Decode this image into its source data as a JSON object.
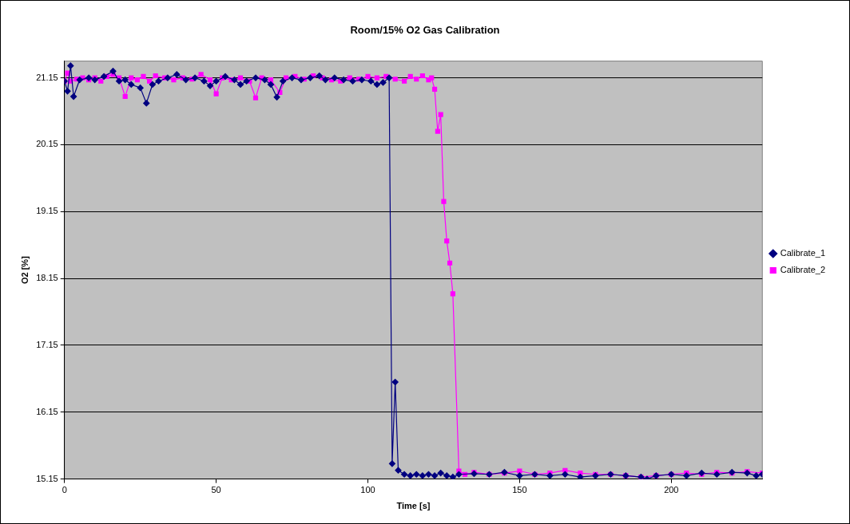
{
  "chart_data": {
    "type": "line",
    "title": "Room/15% O2 Gas Calibration",
    "xlabel": "Time [s]",
    "ylabel": "O2 [%]",
    "xlim": [
      0,
      230
    ],
    "xticks": [
      0,
      50,
      100,
      150,
      200
    ],
    "ylim": [
      15.15,
      21.4
    ],
    "yticks": [
      15.15,
      16.15,
      17.15,
      18.15,
      19.15,
      20.15,
      21.15
    ],
    "grid": "y",
    "legend": "right",
    "line_style": "solid",
    "series": [
      {
        "name": "Calibrate_1",
        "color": "#000080",
        "marker": "diamond",
        "x": [
          0,
          1,
          2,
          3,
          5,
          8,
          10,
          13,
          16,
          18,
          20,
          22,
          25,
          27,
          29,
          31,
          34,
          37,
          40,
          43,
          46,
          48,
          50,
          53,
          56,
          58,
          60,
          63,
          66,
          68,
          70,
          72,
          75,
          78,
          81,
          84,
          86,
          89,
          92,
          95,
          98,
          101,
          103,
          105,
          107,
          108,
          109,
          110,
          112,
          114,
          116,
          118,
          120,
          122,
          124,
          126,
          128,
          130,
          135,
          140,
          145,
          150,
          155,
          160,
          165,
          170,
          175,
          180,
          185,
          190,
          192,
          195,
          200,
          205,
          210,
          215,
          220,
          225,
          228,
          230
        ],
        "values": [
          21.1,
          20.95,
          21.33,
          20.87,
          21.12,
          21.15,
          21.12,
          21.17,
          21.25,
          21.1,
          21.12,
          21.05,
          21.0,
          20.77,
          21.05,
          21.1,
          21.15,
          21.2,
          21.12,
          21.15,
          21.1,
          21.03,
          21.1,
          21.17,
          21.12,
          21.05,
          21.1,
          21.15,
          21.12,
          21.05,
          20.86,
          21.1,
          21.15,
          21.12,
          21.15,
          21.18,
          21.12,
          21.15,
          21.12,
          21.1,
          21.12,
          21.1,
          21.05,
          21.08,
          21.15,
          15.38,
          16.6,
          15.28,
          15.22,
          15.2,
          15.22,
          15.2,
          15.22,
          15.2,
          15.24,
          15.2,
          15.18,
          15.22,
          15.23,
          15.22,
          15.25,
          15.2,
          15.22,
          15.2,
          15.22,
          15.18,
          15.2,
          15.22,
          15.2,
          15.18,
          15.15,
          15.2,
          15.22,
          15.2,
          15.24,
          15.22,
          15.25,
          15.24,
          15.2,
          15.22
        ]
      },
      {
        "name": "Calibrate_2",
        "color": "#ff00ff",
        "marker": "square",
        "x": [
          0,
          1,
          2,
          4,
          6,
          8,
          10,
          12,
          14,
          16,
          18,
          20,
          22,
          24,
          26,
          28,
          30,
          33,
          36,
          39,
          42,
          45,
          48,
          50,
          52,
          55,
          58,
          61,
          63,
          65,
          68,
          71,
          73,
          76,
          79,
          82,
          85,
          88,
          91,
          94,
          97,
          100,
          103,
          106,
          109,
          112,
          114,
          116,
          118,
          120,
          121,
          122,
          123,
          124,
          125,
          126,
          127,
          128,
          130,
          132,
          135,
          140,
          145,
          150,
          155,
          160,
          165,
          170,
          175,
          180,
          185,
          190,
          195,
          200,
          205,
          210,
          215,
          220,
          225,
          230
        ],
        "values": [
          21.1,
          21.22,
          21.1,
          21.13,
          21.15,
          21.12,
          21.15,
          21.1,
          21.17,
          21.2,
          21.15,
          20.87,
          21.15,
          21.12,
          21.17,
          21.1,
          21.18,
          21.15,
          21.12,
          21.15,
          21.13,
          21.2,
          21.12,
          20.91,
          21.15,
          21.12,
          21.15,
          21.1,
          20.85,
          21.15,
          21.12,
          20.93,
          21.15,
          21.17,
          21.13,
          21.18,
          21.15,
          21.12,
          21.1,
          21.15,
          21.13,
          21.17,
          21.15,
          21.17,
          21.13,
          21.1,
          21.17,
          21.13,
          21.18,
          21.12,
          21.15,
          20.98,
          20.35,
          20.6,
          19.3,
          18.71,
          18.38,
          17.92,
          15.27,
          15.22,
          15.25,
          15.22,
          15.24,
          15.27,
          15.22,
          15.24,
          15.28,
          15.24,
          15.22,
          15.22,
          15.2,
          15.18,
          15.2,
          15.22,
          15.24,
          15.22,
          15.25,
          15.24,
          15.26,
          15.24
        ]
      }
    ]
  }
}
